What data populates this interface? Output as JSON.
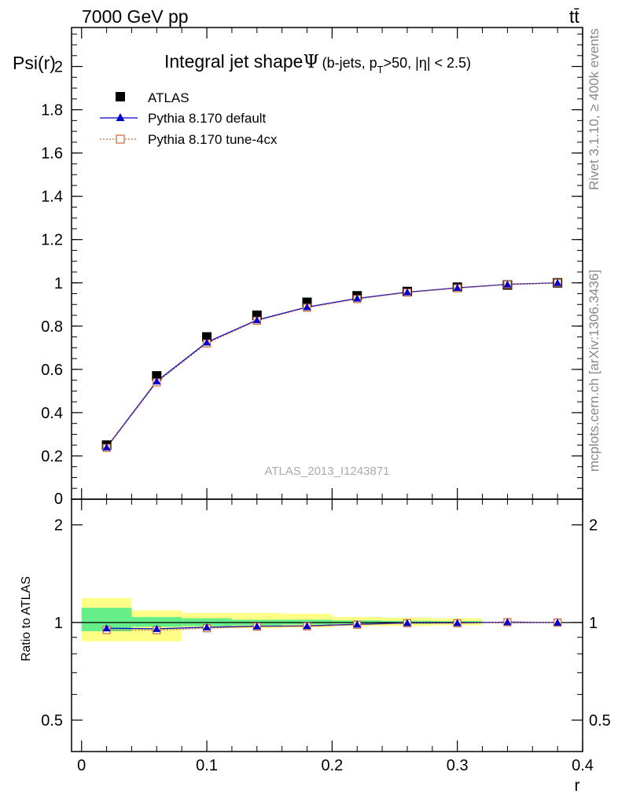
{
  "header": {
    "energy_label": "7000 GeV pp",
    "process_label": "tt̄"
  },
  "side": {
    "rivet_label": "Rivet 3.1.10, ≥ 400k events",
    "mcplots_label": "mcplots.cern.ch [arXiv:1306.3436]"
  },
  "chart_data": [
    {
      "type": "scatter",
      "title": "Integral jet shape",
      "title_symbol": "Ψ",
      "title_cuts": {
        "prefix": "(b-jets, p",
        "subscript": "T",
        "suffix": ">50, |η| < 2.5)"
      },
      "xlabel": "",
      "ylabel": "Psi(r)",
      "watermark": "ATLAS_2013_I1243871",
      "xlim": [
        -0.008,
        0.4
      ],
      "ylim": [
        0,
        2.18
      ],
      "yticks": [
        0.2,
        0.4,
        0.6,
        0.8,
        1,
        1.2,
        1.4,
        1.6,
        1.8,
        2
      ],
      "ytick_labels": [
        "0.2",
        "0.4",
        "0.6",
        "0.8",
        "1",
        "1.2",
        "1.4",
        "1.6",
        "1.8",
        "2"
      ],
      "ytick_zero_label": "0",
      "legend_position": "top-left",
      "x": [
        0.02,
        0.06,
        0.1,
        0.14,
        0.18,
        0.22,
        0.26,
        0.3,
        0.34,
        0.38
      ],
      "series": [
        {
          "name": "ATLAS",
          "marker": "square",
          "color": "#000000",
          "values": [
            0.25,
            0.57,
            0.75,
            0.85,
            0.91,
            0.94,
            0.96,
            0.98,
            0.99,
            1.0
          ]
        },
        {
          "name": "Pythia 8.170 default",
          "marker": "triangle",
          "color": "#0000cc",
          "values": [
            0.24,
            0.545,
            0.725,
            0.828,
            0.888,
            0.928,
            0.957,
            0.977,
            0.993,
            1.0
          ]
        },
        {
          "name": "Pythia 8.170 tune-4cx",
          "marker": "open-square",
          "color": "#cc6633",
          "values": [
            0.237,
            0.54,
            0.72,
            0.825,
            0.885,
            0.925,
            0.955,
            0.975,
            0.992,
            1.0
          ]
        }
      ]
    },
    {
      "type": "scatter",
      "title": "",
      "xlabel": "r",
      "ylabel": "Ratio to ATLAS",
      "log_y": true,
      "xlim": [
        -0.008,
        0.4
      ],
      "ylim": [
        0.4,
        2.4
      ],
      "xticks": [
        0,
        0.1,
        0.2,
        0.3,
        0.4
      ],
      "xtick_labels": [
        "0",
        "0.1",
        "0.2",
        "0.3",
        "0.4"
      ],
      "yticks": [
        0.5,
        1,
        2
      ],
      "ytick_labels": [
        "0.5",
        "1",
        "2"
      ],
      "bands": [
        {
          "x0": 0.0,
          "x1": 0.04,
          "stat_lo": 0.94,
          "stat_hi": 1.11,
          "tot_lo": 0.875,
          "tot_hi": 1.19
        },
        {
          "x0": 0.04,
          "x1": 0.08,
          "stat_lo": 0.97,
          "stat_hi": 1.04,
          "tot_lo": 0.875,
          "tot_hi": 1.09
        },
        {
          "x0": 0.08,
          "x1": 0.12,
          "stat_lo": 0.975,
          "stat_hi": 1.03,
          "tot_lo": 0.96,
          "tot_hi": 1.07
        },
        {
          "x0": 0.12,
          "x1": 0.16,
          "stat_lo": 0.98,
          "stat_hi": 1.02,
          "tot_lo": 0.96,
          "tot_hi": 1.07
        },
        {
          "x0": 0.16,
          "x1": 0.2,
          "stat_lo": 0.985,
          "stat_hi": 1.02,
          "tot_lo": 0.965,
          "tot_hi": 1.065
        },
        {
          "x0": 0.2,
          "x1": 0.24,
          "stat_lo": 0.99,
          "stat_hi": 1.015,
          "tot_lo": 0.975,
          "tot_hi": 1.04
        },
        {
          "x0": 0.24,
          "x1": 0.28,
          "stat_lo": 0.99,
          "stat_hi": 1.012,
          "tot_lo": 0.975,
          "tot_hi": 1.035
        },
        {
          "x0": 0.28,
          "x1": 0.32,
          "stat_lo": 0.993,
          "stat_hi": 1.01,
          "tot_lo": 0.98,
          "tot_hi": 1.03
        },
        {
          "x0": 0.32,
          "x1": 0.36,
          "stat_lo": 0.997,
          "stat_hi": 1.003,
          "tot_lo": 0.997,
          "tot_hi": 1.003
        },
        {
          "x0": 0.36,
          "x1": 0.4,
          "stat_lo": 0.999,
          "stat_hi": 1.001,
          "tot_lo": 0.999,
          "tot_hi": 1.001
        }
      ],
      "band_colors": {
        "stat": "#66ee88",
        "total": "#ffff88"
      },
      "x": [
        0.02,
        0.06,
        0.1,
        0.14,
        0.18,
        0.22,
        0.26,
        0.3,
        0.34,
        0.38
      ],
      "series": [
        {
          "name": "Pythia 8.170 default",
          "marker": "triangle",
          "color": "#0000cc",
          "values": [
            0.96,
            0.956,
            0.967,
            0.974,
            0.976,
            0.987,
            0.997,
            0.997,
            1.003,
            1.0
          ]
        },
        {
          "name": "Pythia 8.170 tune-4cx",
          "marker": "open-square",
          "color": "#cc6633",
          "values": [
            0.948,
            0.947,
            0.96,
            0.971,
            0.973,
            0.984,
            0.995,
            0.995,
            1.002,
            1.0
          ]
        }
      ]
    }
  ]
}
